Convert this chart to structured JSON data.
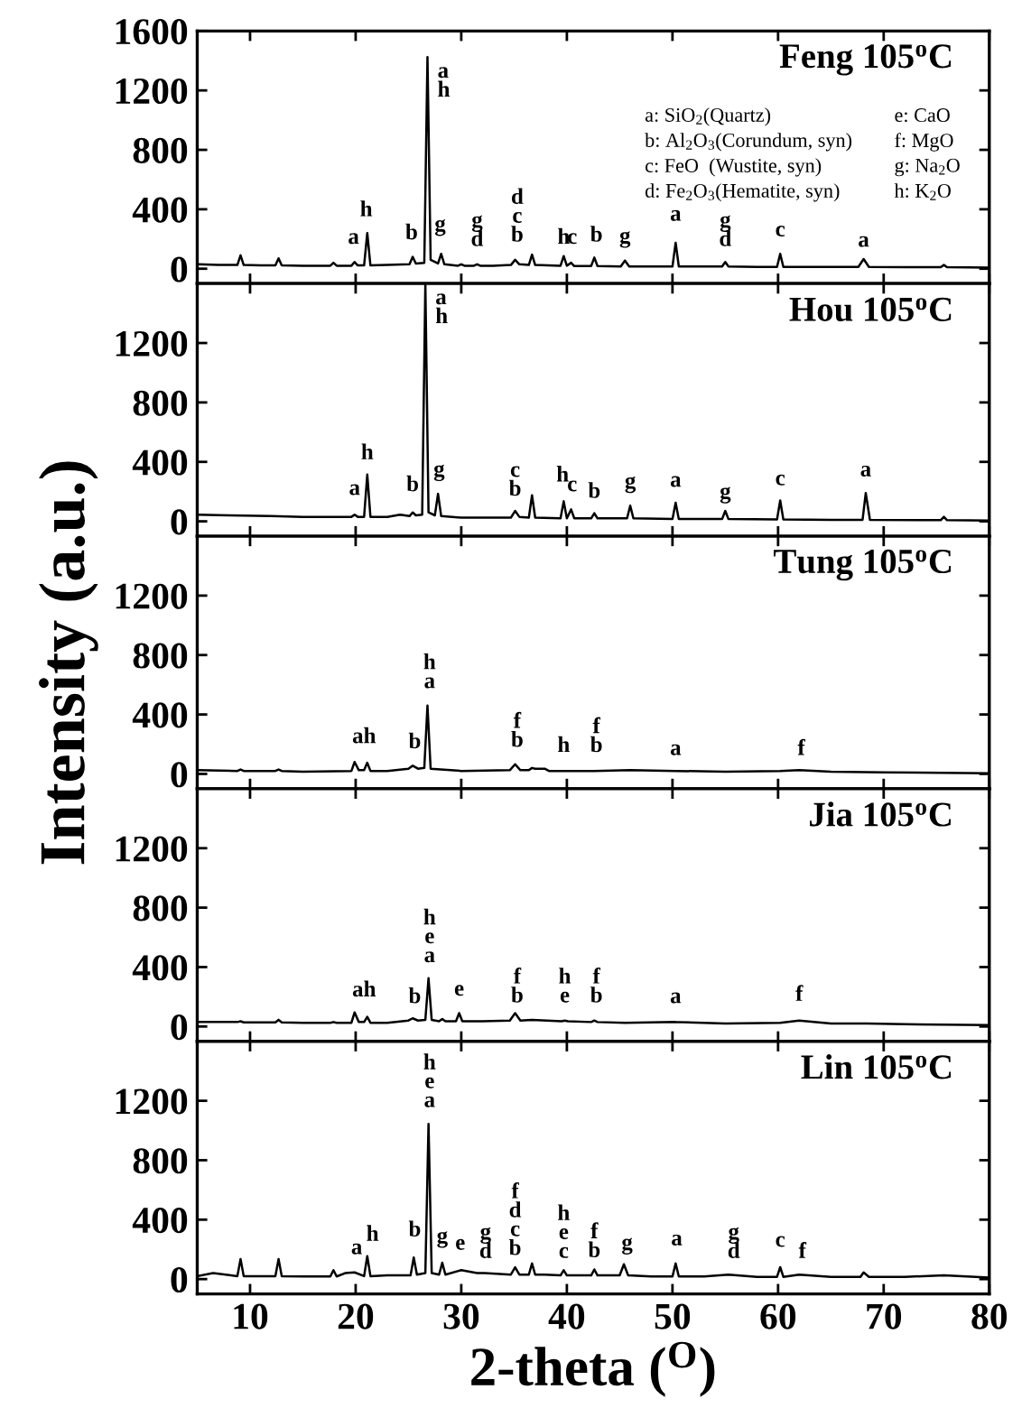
{
  "chart_data": [
    {
      "type": "line",
      "title": "Feng 105$^{o}$C",
      "xlim": [
        5,
        80
      ],
      "ylim": [
        -100,
        1600
      ],
      "xticks": [
        10,
        20,
        30,
        40,
        50,
        60,
        70,
        80
      ],
      "yticks": [
        0,
        400,
        800,
        1200,
        1600
      ],
      "tick_labels": "y",
      "x": [
        5,
        7,
        8.8,
        9.1,
        9.4,
        11,
        12.4,
        12.7,
        13,
        15,
        17.6,
        17.9,
        18.2,
        19.6,
        19.9,
        20.2,
        20.8,
        21.1,
        21.4,
        23,
        25.1,
        25.4,
        25.7,
        26.5,
        26.8,
        27.1,
        27.8,
        28.1,
        28.4,
        29.7,
        30,
        30.3,
        31.2,
        31.5,
        31.8,
        33,
        34.7,
        35.1,
        35.5,
        36.4,
        36.7,
        37,
        39.4,
        39.7,
        40,
        40.4,
        40.7,
        42.3,
        42.6,
        42.9,
        45.1,
        45.5,
        45.9,
        48,
        50,
        50.3,
        50.6,
        53,
        54.7,
        55,
        55.3,
        58,
        59.9,
        60.2,
        60.5,
        64,
        67.6,
        68.1,
        68.6,
        72,
        75.4,
        75.7,
        76,
        80
      ],
      "series": [
        {
          "color": "#000000",
          "values": [
            30,
            25,
            25,
            90,
            25,
            22,
            22,
            70,
            22,
            20,
            20,
            40,
            20,
            20,
            45,
            22,
            22,
            240,
            22,
            25,
            30,
            80,
            35,
            40,
            1425,
            60,
            35,
            100,
            30,
            20,
            30,
            20,
            20,
            30,
            20,
            20,
            25,
            60,
            30,
            25,
            95,
            25,
            20,
            85,
            20,
            40,
            18,
            18,
            75,
            18,
            15,
            55,
            15,
            15,
            15,
            175,
            15,
            15,
            15,
            45,
            15,
            12,
            12,
            100,
            12,
            12,
            12,
            65,
            12,
            10,
            10,
            25,
            10,
            8
          ]
        }
      ],
      "annotations": [
        "a: SiO$_{2}$(Quartz)",
        "e: CaO",
        "b: Al$_{2}$O$_{3}$(Corundum, syn)",
        "f: MgO",
        "c: FeO  (Wustite, syn)",
        "g: Na$_{2}$O",
        "d: Fe$_{2}$O$_{3}$(Hematite, syn)",
        "h: K$_{2}$O",
        {
          "text": "a",
          "x": 19.8,
          "y": 85
        },
        {
          "text": "h",
          "x": 21.0,
          "y": 270
        },
        {
          "text": "b",
          "x": 25.3,
          "y": 115
        },
        {
          "text": "a\nh",
          "x": 26.8,
          "y": 1425
        },
        {
          "text": "g",
          "x": 28.0,
          "y": 170
        },
        {
          "text": "g\nd",
          "x": 31.5,
          "y": 70
        },
        {
          "text": "d\nc\nb",
          "x": 35.3,
          "y": 100
        },
        {
          "text": "h",
          "x": 39.7,
          "y": 85
        },
        {
          "text": "c",
          "x": 40.5,
          "y": 85
        },
        {
          "text": "b",
          "x": 42.8,
          "y": 100
        },
        {
          "text": "g",
          "x": 45.5,
          "y": 90
        },
        {
          "text": "a",
          "x": 50.3,
          "y": 240
        },
        {
          "text": "g\nd",
          "x": 55.0,
          "y": 70
        },
        {
          "text": "c",
          "x": 60.2,
          "y": 135
        },
        {
          "text": "a",
          "x": 68.1,
          "y": 65
        }
      ]
    },
    {
      "type": "line",
      "title": "Hou 105$^{o}$C",
      "xlim": [
        5,
        80
      ],
      "ylim": [
        -100,
        1600
      ],
      "xticks": [
        10,
        20,
        30,
        40,
        50,
        60,
        70,
        80
      ],
      "yticks": [
        0,
        400,
        800,
        1200
      ],
      "tick_labels": "y",
      "x": [
        5,
        8,
        12,
        15,
        19.6,
        19.9,
        20.2,
        20.8,
        21.1,
        21.4,
        23,
        24.2,
        25.1,
        25.4,
        25.7,
        26.3,
        26.6,
        26.9,
        27.5,
        27.8,
        28.1,
        30,
        34.7,
        35.1,
        35.5,
        36.4,
        36.7,
        37,
        39.4,
        39.7,
        40,
        40.4,
        40.7,
        42.3,
        42.6,
        42.9,
        45.7,
        46,
        46.3,
        50,
        50.3,
        50.6,
        54.7,
        55,
        55.3,
        59.9,
        60.2,
        60.5,
        65,
        68,
        68.3,
        68.7,
        75.4,
        75.7,
        76,
        80
      ],
      "series": [
        {
          "color": "#000000",
          "values": [
            45,
            40,
            35,
            30,
            30,
            45,
            30,
            30,
            315,
            30,
            30,
            45,
            35,
            60,
            40,
            45,
            1600,
            60,
            40,
            185,
            35,
            25,
            25,
            70,
            30,
            25,
            175,
            25,
            20,
            135,
            20,
            80,
            20,
            20,
            55,
            20,
            20,
            105,
            20,
            15,
            125,
            15,
            15,
            70,
            15,
            12,
            140,
            12,
            10,
            10,
            190,
            10,
            8,
            30,
            8,
            5
          ]
        }
      ],
      "annotations": [
        {
          "text": "a",
          "x": 19.9,
          "y": 95
        },
        {
          "text": "h",
          "x": 21.1,
          "y": 335
        },
        {
          "text": "b",
          "x": 25.4,
          "y": 120
        },
        {
          "text": "a\nh",
          "x": 26.6,
          "y": 1600
        },
        {
          "text": "g",
          "x": 27.9,
          "y": 220
        },
        {
          "text": "c\nb",
          "x": 35.1,
          "y": 90
        },
        {
          "text": "h",
          "x": 39.6,
          "y": 185
        },
        {
          "text": "c",
          "x": 40.5,
          "y": 120
        },
        {
          "text": "b",
          "x": 42.6,
          "y": 75
        },
        {
          "text": "g",
          "x": 46.0,
          "y": 140
        },
        {
          "text": "a",
          "x": 50.3,
          "y": 150
        },
        {
          "text": "g",
          "x": 55.0,
          "y": 70
        },
        {
          "text": "c",
          "x": 60.2,
          "y": 160
        },
        {
          "text": "a",
          "x": 68.3,
          "y": 220
        }
      ]
    },
    {
      "type": "line",
      "title": "Tung 105$^{o}$C",
      "ylabel": "Intensity (a.u.)",
      "xlim": [
        5,
        80
      ],
      "ylim": [
        -100,
        1600
      ],
      "xticks": [
        10,
        20,
        30,
        40,
        50,
        60,
        70,
        80
      ],
      "yticks": [
        0,
        400,
        800,
        1200
      ],
      "tick_labels": "y",
      "x": [
        5,
        8.8,
        9.1,
        9.4,
        12.4,
        12.7,
        13,
        15,
        19.6,
        19.9,
        20.3,
        20.8,
        21.1,
        21.4,
        23,
        25,
        25.4,
        25.9,
        26.5,
        26.8,
        27.1,
        30,
        34.6,
        35.1,
        35.6,
        36.4,
        36.7,
        37,
        37.9,
        38.3,
        39.7,
        42.6,
        46,
        50.3,
        55,
        60.2,
        62,
        65,
        70,
        80
      ],
      "series": [
        {
          "color": "#000000",
          "values": [
            25,
            20,
            30,
            20,
            20,
            30,
            20,
            15,
            20,
            80,
            25,
            25,
            75,
            20,
            20,
            35,
            55,
            35,
            40,
            460,
            35,
            20,
            25,
            65,
            25,
            25,
            40,
            35,
            35,
            20,
            20,
            20,
            25,
            20,
            15,
            20,
            25,
            15,
            10,
            5
          ]
        }
      ],
      "annotations": [
        {
          "text": "ah",
          "x": 20.8,
          "y": 125
        },
        {
          "text": "b",
          "x": 25.6,
          "y": 90
        },
        {
          "text": "h\na",
          "x": 27.0,
          "y": 495
        },
        {
          "text": "f\nb",
          "x": 35.3,
          "y": 100
        },
        {
          "text": "h",
          "x": 39.7,
          "y": 65
        },
        {
          "text": "f\nb",
          "x": 42.8,
          "y": 65
        },
        {
          "text": "a",
          "x": 50.3,
          "y": 45
        },
        {
          "text": "f",
          "x": 62.2,
          "y": 45
        }
      ]
    },
    {
      "type": "line",
      "title": "Jia 105$^{o}$C",
      "xlim": [
        5,
        80
      ],
      "ylim": [
        -100,
        1600
      ],
      "xticks": [
        10,
        20,
        30,
        40,
        50,
        60,
        70,
        80
      ],
      "yticks": [
        0,
        400,
        800,
        1200
      ],
      "tick_labels": "y",
      "x": [
        5,
        8.8,
        9.1,
        9.4,
        12.4,
        12.7,
        13,
        15,
        17.6,
        17.9,
        18.2,
        19.6,
        19.9,
        20.3,
        20.8,
        21.1,
        21.4,
        23,
        25,
        25.4,
        25.9,
        26.6,
        26.9,
        27.2,
        27.9,
        28.2,
        28.5,
        29.5,
        29.8,
        30.1,
        32,
        34.6,
        35.1,
        35.6,
        36.7,
        39.5,
        39.8,
        40.1,
        42.3,
        42.6,
        42.9,
        45.5,
        50.3,
        55,
        60.2,
        62,
        65,
        68.4,
        72,
        80
      ],
      "series": [
        {
          "color": "#000000",
          "values": [
            30,
            30,
            35,
            28,
            28,
            45,
            28,
            25,
            25,
            30,
            25,
            25,
            95,
            30,
            30,
            65,
            25,
            25,
            40,
            55,
            40,
            45,
            325,
            45,
            35,
            50,
            35,
            35,
            90,
            35,
            35,
            40,
            90,
            40,
            45,
            35,
            40,
            35,
            30,
            40,
            30,
            25,
            30,
            20,
            25,
            40,
            20,
            20,
            15,
            10
          ]
        }
      ],
      "annotations": [
        {
          "text": "ah",
          "x": 20.8,
          "y": 120
        },
        {
          "text": "b",
          "x": 25.6,
          "y": 75
        },
        {
          "text": "h\ne\na",
          "x": 27.0,
          "y": 350
        },
        {
          "text": "e",
          "x": 29.8,
          "y": 125
        },
        {
          "text": "f\nb",
          "x": 35.3,
          "y": 80
        },
        {
          "text": "h\ne",
          "x": 39.8,
          "y": 80
        },
        {
          "text": "f\nb",
          "x": 42.8,
          "y": 80
        },
        {
          "text": "a",
          "x": 50.3,
          "y": 75
        },
        {
          "text": "f",
          "x": 62.0,
          "y": 90
        }
      ]
    },
    {
      "type": "line",
      "title": "Lin 105$^{o}$C",
      "xlabel": "2-theta ($^{O}$)",
      "xlim": [
        5,
        80
      ],
      "ylim": [
        -100,
        1600
      ],
      "xticks": [
        10,
        20,
        30,
        40,
        50,
        60,
        70,
        80
      ],
      "yticks": [
        0,
        400,
        800,
        1200
      ],
      "x": [
        5,
        6.5,
        8.8,
        9.1,
        9.4,
        12.4,
        12.7,
        13,
        15,
        17.6,
        17.9,
        18.2,
        19,
        19.9,
        20.8,
        21.1,
        21.4,
        23,
        25.2,
        25.5,
        25.8,
        26.6,
        26.9,
        27.2,
        27.9,
        28.2,
        28.5,
        30,
        31.5,
        32.2,
        34.7,
        35.1,
        35.5,
        36.4,
        36.7,
        37,
        37.9,
        39.4,
        39.7,
        40,
        42.3,
        42.6,
        42.9,
        45,
        45.4,
        45.8,
        48,
        50,
        50.3,
        50.6,
        53,
        55.3,
        58,
        59.9,
        60.2,
        60.5,
        62,
        65,
        67.8,
        68.1,
        68.6,
        72,
        75.7,
        80
      ],
      "series": [
        {
          "color": "#000000",
          "values": [
            20,
            40,
            20,
            135,
            20,
            20,
            135,
            20,
            18,
            18,
            60,
            18,
            40,
            45,
            20,
            155,
            20,
            25,
            25,
            145,
            30,
            40,
            1045,
            40,
            30,
            110,
            30,
            60,
            40,
            40,
            30,
            80,
            30,
            30,
            105,
            30,
            30,
            25,
            60,
            25,
            25,
            65,
            25,
            25,
            100,
            25,
            18,
            18,
            105,
            18,
            18,
            30,
            15,
            15,
            80,
            15,
            30,
            15,
            15,
            45,
            15,
            15,
            25,
            10
          ]
        }
      ],
      "annotations": [
        {
          "text": "a",
          "x": 20.1,
          "y": 85
        },
        {
          "text": "h",
          "x": 21.6,
          "y": 175
        },
        {
          "text": "b",
          "x": 25.6,
          "y": 205
        },
        {
          "text": "h\ne\na",
          "x": 27.0,
          "y": 1075
        },
        {
          "text": "g",
          "x": 28.2,
          "y": 160
        },
        {
          "text": "e",
          "x": 29.9,
          "y": 115
        },
        {
          "text": "g\nd",
          "x": 32.3,
          "y": 60
        },
        {
          "text": "f\nd\nc\nb",
          "x": 35.1,
          "y": 80
        },
        {
          "text": "h\ne\nc",
          "x": 39.7,
          "y": 60
        },
        {
          "text": "f\nb",
          "x": 42.6,
          "y": 65
        },
        {
          "text": "g",
          "x": 45.7,
          "y": 115
        },
        {
          "text": "a",
          "x": 50.4,
          "y": 145
        },
        {
          "text": "g\nd",
          "x": 55.8,
          "y": 60
        },
        {
          "text": "c",
          "x": 60.2,
          "y": 135
        },
        {
          "text": "f",
          "x": 62.3,
          "y": 60
        }
      ]
    }
  ]
}
